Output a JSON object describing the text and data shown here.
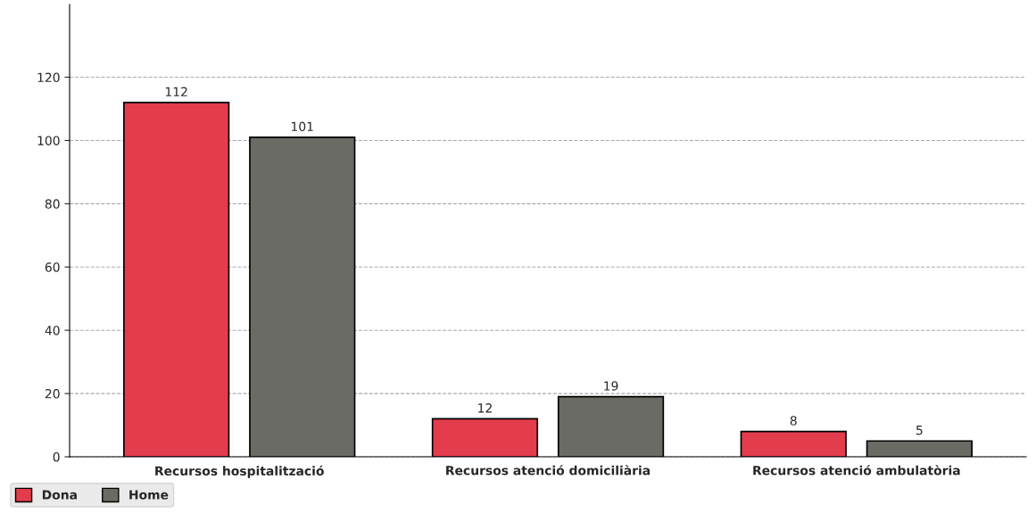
{
  "chart_data": {
    "type": "bar",
    "categories": [
      "Recursos hospitalització",
      "Recursos atenció domiciliària",
      "Recursos atenció ambulatòria"
    ],
    "series": [
      {
        "name": "Dona",
        "color": "#e33c4c",
        "values": [
          112,
          12,
          8
        ]
      },
      {
        "name": "Home",
        "color": "#6b6b66",
        "values": [
          101,
          19,
          5
        ]
      }
    ],
    "ylim": [
      0,
      143
    ],
    "yticks": [
      0,
      20,
      40,
      60,
      80,
      100,
      120
    ],
    "grid": "y",
    "legend": "bottom",
    "data_labels": true
  }
}
